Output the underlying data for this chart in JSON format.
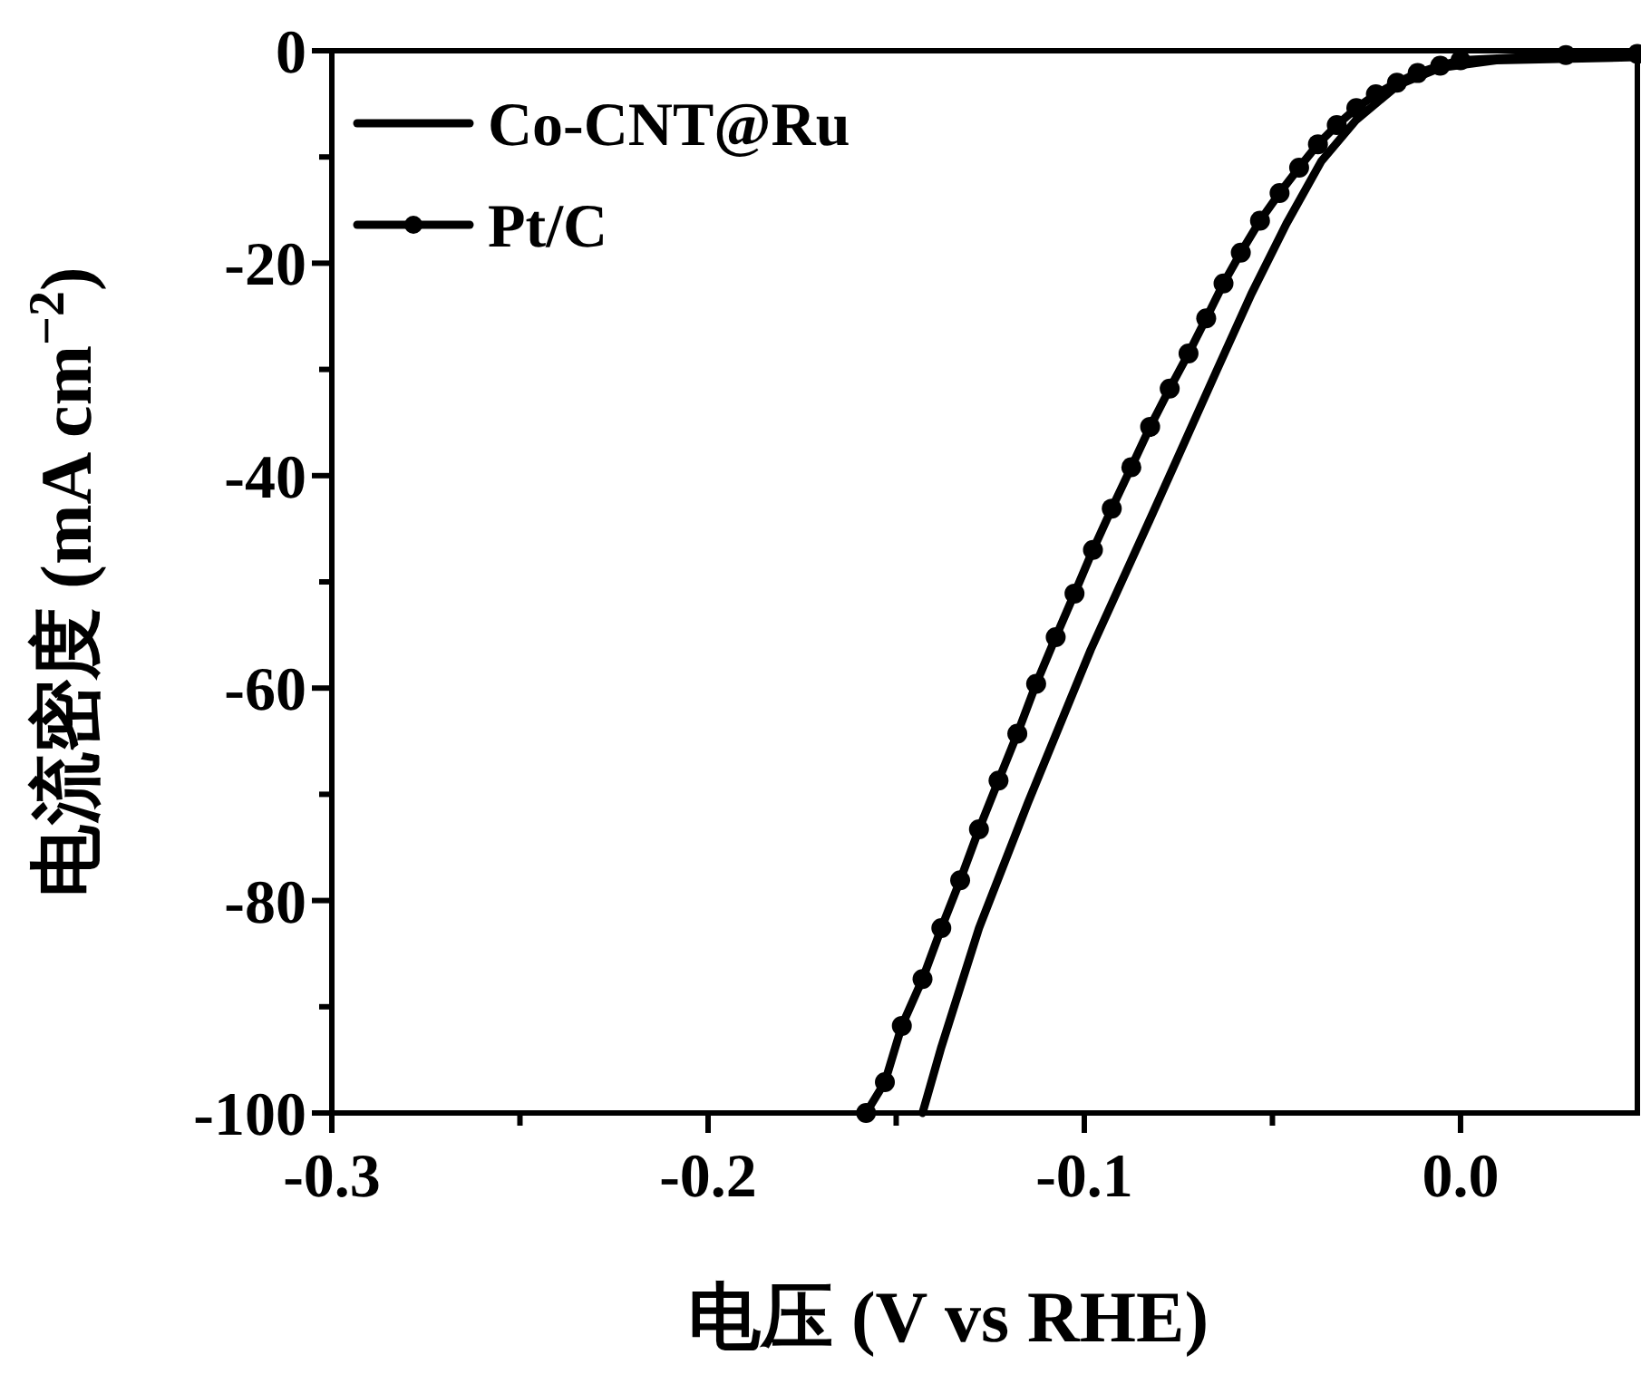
{
  "chart_data": {
    "type": "line",
    "xlabel": "电压 (V vs RHE)",
    "ylabel": "电流密度 (mA cm$^{−2}$)",
    "xlim": [
      -0.3,
      0.047
    ],
    "ylim": [
      -100,
      0
    ],
    "xticks": [
      {
        "value": -0.3,
        "label": "-0.3"
      },
      {
        "value": -0.25,
        "label": null
      },
      {
        "value": -0.2,
        "label": "-0.2"
      },
      {
        "value": -0.15,
        "label": null
      },
      {
        "value": -0.1,
        "label": "-0.1"
      },
      {
        "value": -0.05,
        "label": null
      },
      {
        "value": 0,
        "label": "0.0"
      }
    ],
    "yticks": [
      {
        "value": 0,
        "label": "0"
      },
      {
        "value": -10,
        "label": null
      },
      {
        "value": -20,
        "label": "-20"
      },
      {
        "value": -30,
        "label": null
      },
      {
        "value": -40,
        "label": "-40"
      },
      {
        "value": -50,
        "label": null
      },
      {
        "value": -60,
        "label": "-60"
      },
      {
        "value": -70,
        "label": null
      },
      {
        "value": -80,
        "label": "-80"
      },
      {
        "value": -90,
        "label": null
      },
      {
        "value": -100,
        "label": "-100"
      }
    ],
    "grid": false,
    "legend": "top left",
    "line_style": "solid",
    "series": [
      {
        "name": "Co-CNT@Ru",
        "color": "#000000",
        "marker": "none",
        "x": [
          -0.143,
          -0.138,
          -0.128,
          -0.115,
          -0.0983,
          -0.0815,
          -0.0648,
          -0.0556,
          -0.0463,
          -0.037,
          -0.0277,
          -0.0165,
          -0.0054,
          0.0095,
          0.047
        ],
        "values": [
          -100,
          -93.8,
          -82.6,
          -70.8,
          -56.4,
          -43.3,
          -30.1,
          -22.9,
          -16.3,
          -10.4,
          -6.5,
          -3.2,
          -1.6,
          -0.9,
          -0.6
        ]
      },
      {
        "name": "Pt/C",
        "color": "#000000",
        "marker": "circle",
        "x": [
          -0.158,
          -0.153,
          -0.1485,
          -0.143,
          -0.138,
          -0.133,
          -0.128,
          -0.1228,
          -0.1178,
          -0.1128,
          -0.1076,
          -0.1026,
          -0.0977,
          -0.0927,
          -0.0875,
          -0.0825,
          -0.0773,
          -0.0723,
          -0.0676,
          -0.063,
          -0.0584,
          -0.0533,
          -0.0481,
          -0.0429,
          -0.0379,
          -0.0329,
          -0.0277,
          -0.0225,
          -0.0169,
          -0.0114,
          -0.0054,
          0.0,
          0.028,
          0.047
        ],
        "values": [
          -100,
          -97.1,
          -91.8,
          -87.4,
          -82.6,
          -78.1,
          -73.3,
          -68.7,
          -64.3,
          -59.6,
          -55.2,
          -51.1,
          -47.0,
          -43.1,
          -39.2,
          -35.4,
          -31.8,
          -28.5,
          -25.2,
          -21.9,
          -19.0,
          -16.0,
          -13.4,
          -11.0,
          -8.8,
          -7.0,
          -5.4,
          -4.1,
          -3.0,
          -2.1,
          -1.4,
          -0.9,
          -0.4,
          -0.3
        ]
      }
    ]
  }
}
